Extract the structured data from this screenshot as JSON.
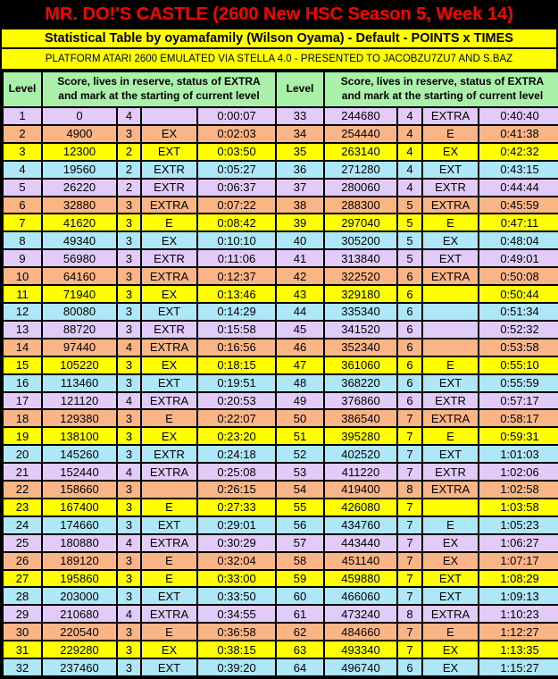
{
  "title": "MR. DO!'S CASTLE (2600 New HSC Season 5, Week 14)",
  "subtitle": "Statistical Table by oyamafamily (Wilson Oyama) - Default - POINTS x TIMES",
  "platform_line": "PLATFORM ATARI 2600 EMULATED VIA STELLA 4.0 - PRESENTED TO JACOBZU7ZU7 AND S.BAZ",
  "header": {
    "level_label": "Level",
    "stats_label_line1": "Score, lives in reserve, status of EXTRA",
    "stats_label_line2": "and mark at the starting  of current level"
  },
  "colors": {
    "title_bg": "#000000",
    "title_text": "#FF0000",
    "subtitle_bg": "#FFFF00",
    "platform_bg": "#FFFF00",
    "header_bg": "#A9F0A9",
    "row_cycle": [
      "#E2CBF9",
      "#F9B586",
      "#FFFF00",
      "#AEE7F8"
    ],
    "border": "#000000"
  },
  "chart_data": {
    "type": "table",
    "title": "MR. DO!'S CASTLE (2600 New HSC Season 5, Week 14) - Statistical Table by oyamafamily (Wilson Oyama) - Default - POINTS x TIMES",
    "columns": [
      "Level",
      "Score",
      "Lives in reserve",
      "Status of EXTRA",
      "Time at start of level"
    ],
    "layout": "two halves side by side: levels 1-32 left, levels 33-64 right; row colors cycle lavender/salmon/yellow/cyan",
    "rows": [
      [
        1,
        0,
        4,
        "",
        "0:00:07"
      ],
      [
        2,
        4900,
        3,
        "EX",
        "0:02:03"
      ],
      [
        3,
        12300,
        2,
        "EXT",
        "0:03:50"
      ],
      [
        4,
        19560,
        2,
        "EXTR",
        "0:05:27"
      ],
      [
        5,
        26220,
        2,
        "EXTR",
        "0:06:37"
      ],
      [
        6,
        32880,
        3,
        "EXTRA",
        "0:07:22"
      ],
      [
        7,
        41620,
        3,
        "E",
        "0:08:42"
      ],
      [
        8,
        49340,
        3,
        "EX",
        "0:10:10"
      ],
      [
        9,
        56980,
        3,
        "EXTR",
        "0:11:06"
      ],
      [
        10,
        64160,
        3,
        "EXTRA",
        "0:12:37"
      ],
      [
        11,
        71940,
        3,
        "EX",
        "0:13:46"
      ],
      [
        12,
        80080,
        3,
        "EXT",
        "0:14:29"
      ],
      [
        13,
        88720,
        3,
        "EXTR",
        "0:15:58"
      ],
      [
        14,
        97440,
        4,
        "EXTRA",
        "0:16:56"
      ],
      [
        15,
        105220,
        3,
        "EX",
        "0:18:15"
      ],
      [
        16,
        113460,
        3,
        "EXT",
        "0:19:51"
      ],
      [
        17,
        121120,
        4,
        "EXTRA",
        "0:20:53"
      ],
      [
        18,
        129380,
        3,
        "E",
        "0:22:07"
      ],
      [
        19,
        138100,
        3,
        "EX",
        "0:23:20"
      ],
      [
        20,
        145260,
        3,
        "EXTR",
        "0:24:18"
      ],
      [
        21,
        152440,
        4,
        "EXTRA",
        "0:25:08"
      ],
      [
        22,
        158660,
        3,
        "",
        "0:26:15"
      ],
      [
        23,
        167400,
        3,
        "E",
        "0:27:33"
      ],
      [
        24,
        174660,
        3,
        "EXT",
        "0:29:01"
      ],
      [
        25,
        180880,
        4,
        "EXTRA",
        "0:30:29"
      ],
      [
        26,
        189120,
        3,
        "E",
        "0:32:04"
      ],
      [
        27,
        195860,
        3,
        "E",
        "0:33:00"
      ],
      [
        28,
        203000,
        3,
        "EXT",
        "0:33:50"
      ],
      [
        29,
        210680,
        4,
        "EXTRA",
        "0:34:55"
      ],
      [
        30,
        220540,
        3,
        "E",
        "0:36:58"
      ],
      [
        31,
        229280,
        3,
        "EX",
        "0:38:15"
      ],
      [
        32,
        237460,
        3,
        "EXT",
        "0:39:20"
      ],
      [
        33,
        244680,
        4,
        "EXTRA",
        "0:40:40"
      ],
      [
        34,
        254440,
        4,
        "E",
        "0:41:38"
      ],
      [
        35,
        263140,
        4,
        "EX",
        "0:42:32"
      ],
      [
        36,
        271280,
        4,
        "EXT",
        "0:43:15"
      ],
      [
        37,
        280060,
        4,
        "EXTR",
        "0:44:44"
      ],
      [
        38,
        288300,
        5,
        "EXTRA",
        "0:45:59"
      ],
      [
        39,
        297040,
        5,
        "E",
        "0:47:11"
      ],
      [
        40,
        305200,
        5,
        "EX",
        "0:48:04"
      ],
      [
        41,
        313840,
        5,
        "EXT",
        "0:49:01"
      ],
      [
        42,
        322520,
        6,
        "EXTRA",
        "0:50:08"
      ],
      [
        43,
        329180,
        6,
        "",
        "0:50:44"
      ],
      [
        44,
        335340,
        6,
        "",
        "0:51:34"
      ],
      [
        45,
        341520,
        6,
        "",
        "0:52:32"
      ],
      [
        46,
        352340,
        6,
        "",
        "0:53:58"
      ],
      [
        47,
        361060,
        6,
        "E",
        "0:55:10"
      ],
      [
        48,
        368220,
        6,
        "EXT",
        "0:55:59"
      ],
      [
        49,
        376860,
        6,
        "EXTR",
        "0:57:17"
      ],
      [
        50,
        386540,
        7,
        "EXTRA",
        "0:58:17"
      ],
      [
        51,
        395280,
        7,
        "E",
        "0:59:31"
      ],
      [
        52,
        402520,
        7,
        "EXT",
        "1:01:03"
      ],
      [
        53,
        411220,
        7,
        "EXTR",
        "1:02:06"
      ],
      [
        54,
        419400,
        8,
        "EXTRA",
        "1:02:58"
      ],
      [
        55,
        426080,
        7,
        "",
        "1:03:58"
      ],
      [
        56,
        434760,
        7,
        "E",
        "1:05:23"
      ],
      [
        57,
        443440,
        7,
        "EX",
        "1:06:27"
      ],
      [
        58,
        451140,
        7,
        "EX",
        "1:07:17"
      ],
      [
        59,
        459880,
        7,
        "EXT",
        "1:08:29"
      ],
      [
        60,
        466060,
        7,
        "EXT",
        "1:09:13"
      ],
      [
        61,
        473240,
        8,
        "EXTRA",
        "1:10:23"
      ],
      [
        62,
        484660,
        7,
        "E",
        "1:12:27"
      ],
      [
        63,
        493340,
        7,
        "EX",
        "1:13:35"
      ],
      [
        64,
        496740,
        6,
        "EX",
        "1:15:27"
      ]
    ]
  }
}
